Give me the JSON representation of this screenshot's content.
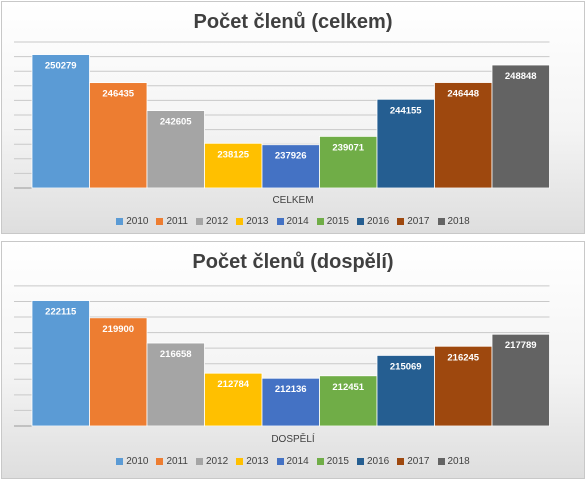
{
  "chart_data": [
    {
      "type": "bar",
      "title": "Počet členů (celkem)",
      "categories": [
        "CELKEM"
      ],
      "xlabel": "CELKEM",
      "ylim": [
        232000,
        252000
      ],
      "grid": true,
      "legend": "bottom",
      "series": [
        {
          "name": "2010",
          "values": [
            250279
          ],
          "color": "#5B9BD5"
        },
        {
          "name": "2011",
          "values": [
            246435
          ],
          "color": "#ED7D31"
        },
        {
          "name": "2012",
          "values": [
            242605
          ],
          "color": "#A5A5A5"
        },
        {
          "name": "2013",
          "values": [
            238125
          ],
          "color": "#FFC000"
        },
        {
          "name": "2014",
          "values": [
            237926
          ],
          "color": "#4472C4"
        },
        {
          "name": "2015",
          "values": [
            239071
          ],
          "color": "#70AD47"
        },
        {
          "name": "2016",
          "values": [
            244155
          ],
          "color": "#255E91"
        },
        {
          "name": "2017",
          "values": [
            246448
          ],
          "color": "#9E480E"
        },
        {
          "name": "2018",
          "values": [
            248848
          ],
          "color": "#636363"
        }
      ]
    },
    {
      "type": "bar",
      "title": "Počet členů (dospělí)",
      "categories": [
        "DOSPĚLÍ"
      ],
      "xlabel": "DOSPĚLÍ",
      "ylim": [
        206000,
        224500
      ],
      "grid": true,
      "legend": "bottom",
      "series": [
        {
          "name": "2010",
          "values": [
            222115
          ],
          "color": "#5B9BD5"
        },
        {
          "name": "2011",
          "values": [
            219900
          ],
          "color": "#ED7D31"
        },
        {
          "name": "2012",
          "values": [
            216658
          ],
          "color": "#A5A5A5"
        },
        {
          "name": "2013",
          "values": [
            212784
          ],
          "color": "#FFC000"
        },
        {
          "name": "2014",
          "values": [
            212136
          ],
          "color": "#4472C4"
        },
        {
          "name": "2015",
          "values": [
            212451
          ],
          "color": "#70AD47"
        },
        {
          "name": "2016",
          "values": [
            215069
          ],
          "color": "#255E91"
        },
        {
          "name": "2017",
          "values": [
            216245
          ],
          "color": "#9E480E"
        },
        {
          "name": "2018",
          "values": [
            217789
          ],
          "color": "#636363"
        }
      ]
    }
  ]
}
